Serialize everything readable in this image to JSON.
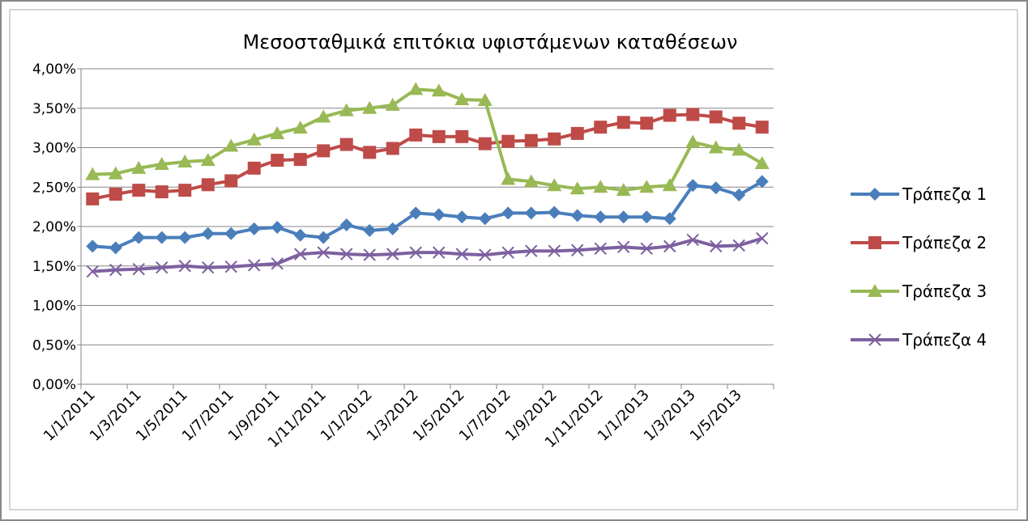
{
  "chart_data": {
    "type": "line",
    "title": "Μεσοσταθμικά επιτόκια υφιστάμενων καταθέσεων",
    "categories": [
      "1/1/2011",
      null,
      "1/3/2011",
      null,
      "1/5/2011",
      null,
      "1/7/2011",
      null,
      "1/9/2011",
      null,
      "1/11/2011",
      null,
      "1/1/2012",
      null,
      "1/3/2012",
      null,
      "1/5/2012",
      null,
      "1/7/2012",
      null,
      "1/9/2012",
      null,
      "1/11/2012",
      null,
      "1/1/2013",
      null,
      "1/3/2013",
      null,
      "1/5/2013",
      null
    ],
    "series": [
      {
        "name": "Τράπεζα 1",
        "color": "#4a7ebb",
        "marker": "diamond",
        "values": [
          1.75,
          1.73,
          1.86,
          1.86,
          1.86,
          1.91,
          1.91,
          1.97,
          1.99,
          1.89,
          1.86,
          2.02,
          1.95,
          1.97,
          2.17,
          2.15,
          2.12,
          2.1,
          2.17,
          2.17,
          2.18,
          2.14,
          2.12,
          2.12,
          2.12,
          2.1,
          2.52,
          2.49,
          2.4,
          2.57
        ]
      },
      {
        "name": "Τράπεζα 2",
        "color": "#be4b48",
        "marker": "square",
        "values": [
          2.35,
          2.41,
          2.46,
          2.44,
          2.46,
          2.53,
          2.58,
          2.74,
          2.84,
          2.85,
          2.96,
          3.04,
          2.94,
          2.99,
          3.16,
          3.14,
          3.14,
          3.05,
          3.08,
          3.09,
          3.11,
          3.18,
          3.26,
          3.32,
          3.31,
          3.41,
          3.42,
          3.39,
          3.31,
          3.26
        ]
      },
      {
        "name": "Τράπεζα 3",
        "color": "#98b954",
        "marker": "triangle",
        "values": [
          2.66,
          2.67,
          2.74,
          2.79,
          2.82,
          2.84,
          3.02,
          3.1,
          3.18,
          3.25,
          3.39,
          3.47,
          3.5,
          3.54,
          3.74,
          3.72,
          3.61,
          3.6,
          2.6,
          2.57,
          2.52,
          2.48,
          2.5,
          2.46,
          2.5,
          2.52,
          3.07,
          3.0,
          2.97,
          2.8
        ]
      },
      {
        "name": "Τράπεζα 4",
        "color": "#7d60a0",
        "marker": "x",
        "values": [
          1.43,
          1.45,
          1.46,
          1.48,
          1.5,
          1.48,
          1.49,
          1.51,
          1.53,
          1.65,
          1.67,
          1.65,
          1.64,
          1.65,
          1.67,
          1.67,
          1.65,
          1.64,
          1.67,
          1.69,
          1.69,
          1.7,
          1.72,
          1.74,
          1.72,
          1.75,
          1.83,
          1.75,
          1.76,
          1.85
        ]
      }
    ],
    "ylim": [
      0,
      4
    ],
    "yticks": [
      {
        "value": 0,
        "label": "0,00%"
      },
      {
        "value": 0.5,
        "label": "0,50%"
      },
      {
        "value": 1,
        "label": "1,00%"
      },
      {
        "value": 1.5,
        "label": "1,50%"
      },
      {
        "value": 2,
        "label": "2,00%"
      },
      {
        "value": 2.5,
        "label": "2,50%"
      },
      {
        "value": 3,
        "label": "3,00%"
      },
      {
        "value": 3.5,
        "label": "3,50%"
      },
      {
        "value": 4,
        "label": "4,00%"
      }
    ],
    "grid": true,
    "legend": "right"
  }
}
